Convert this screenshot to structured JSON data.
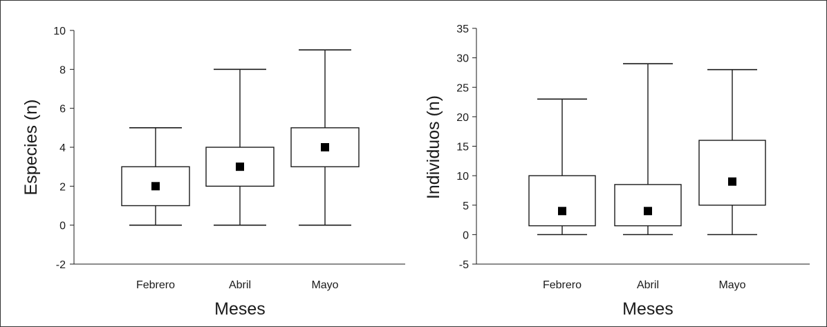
{
  "chart_data": [
    {
      "type": "boxplot",
      "xlabel": "Meses",
      "ylabel": "Especies (n)",
      "ylim": [
        -2,
        10
      ],
      "yticks": [
        -2,
        0,
        2,
        4,
        6,
        8,
        10
      ],
      "categories": [
        "Febrero",
        "Abril",
        "Mayo"
      ],
      "boxes": [
        {
          "category": "Febrero",
          "whisker_low": 0,
          "q1": 1,
          "median": 2,
          "q3": 3,
          "whisker_high": 5
        },
        {
          "category": "Abril",
          "whisker_low": 0,
          "q1": 2,
          "median": 3,
          "q3": 4,
          "whisker_high": 8
        },
        {
          "category": "Mayo",
          "whisker_low": 0,
          "q1": 3,
          "median": 4,
          "q3": 5,
          "whisker_high": 9
        }
      ],
      "grid": false
    },
    {
      "type": "boxplot",
      "xlabel": "Meses",
      "ylabel": "Individuos (n)",
      "ylim": [
        -5,
        35
      ],
      "yticks": [
        -5,
        0,
        5,
        10,
        15,
        20,
        25,
        30,
        35
      ],
      "categories": [
        "Febrero",
        "Abril",
        "Mayo"
      ],
      "boxes": [
        {
          "category": "Febrero",
          "whisker_low": 0,
          "q1": 1.5,
          "median": 4,
          "q3": 10,
          "whisker_high": 23
        },
        {
          "category": "Abril",
          "whisker_low": 0,
          "q1": 1.5,
          "median": 4,
          "q3": 8.5,
          "whisker_high": 29
        },
        {
          "category": "Mayo",
          "whisker_low": 0,
          "q1": 5,
          "median": 9,
          "q3": 16,
          "whisker_high": 28
        }
      ],
      "grid": false
    }
  ],
  "colors": {
    "line": "#1a1a1a",
    "median_marker": "#000000",
    "box_fill": "#ffffff"
  }
}
